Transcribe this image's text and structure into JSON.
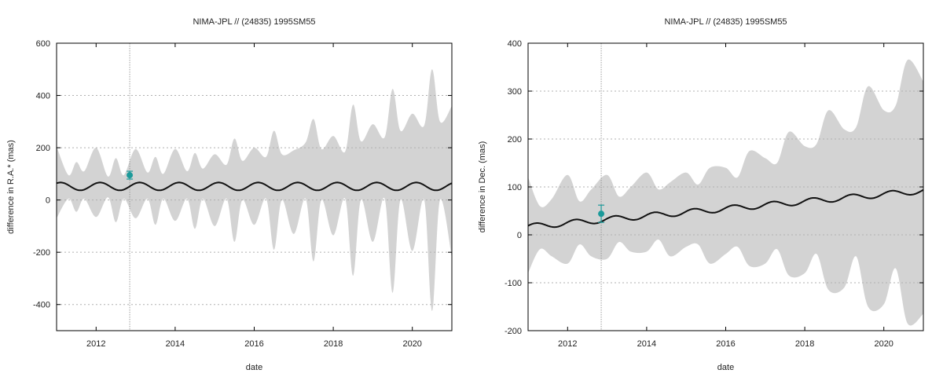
{
  "chart_data": [
    {
      "type": "area",
      "title": "NIMA-JPL // (24835) 1995SM55",
      "xlabel": "date",
      "ylabel": "difference in R.A.* (mas)",
      "xlim": [
        2011.0,
        2021.0
      ],
      "ylim": [
        -500,
        600
      ],
      "xticks": [
        2012,
        2014,
        2016,
        2018,
        2020
      ],
      "yticks": [
        -400,
        -200,
        0,
        200,
        400,
        600
      ],
      "grid": "horizontal dotted",
      "band_color": "#d3d3d3",
      "line_color": "#111111",
      "point_color": "#1b9a9a",
      "reference_date": 2012.85,
      "uncertainty_band": {
        "x": [
          2011.0,
          2011.3,
          2011.5,
          2011.7,
          2012.0,
          2012.3,
          2012.5,
          2012.7,
          2013.0,
          2013.3,
          2013.5,
          2013.7,
          2014.0,
          2014.3,
          2014.5,
          2014.7,
          2015.0,
          2015.3,
          2015.5,
          2015.7,
          2016.0,
          2016.3,
          2016.5,
          2016.7,
          2017.0,
          2017.3,
          2017.5,
          2017.7,
          2018.0,
          2018.3,
          2018.5,
          2018.7,
          2019.0,
          2019.3,
          2019.5,
          2019.7,
          2020.0,
          2020.3,
          2020.5,
          2020.7,
          2021.0
        ],
        "upper": [
          205,
          95,
          145,
          110,
          200,
          90,
          160,
          95,
          195,
          105,
          165,
          100,
          195,
          110,
          180,
          120,
          175,
          135,
          235,
          150,
          200,
          165,
          265,
          175,
          190,
          220,
          310,
          195,
          245,
          185,
          365,
          225,
          290,
          240,
          425,
          265,
          330,
          285,
          500,
          300,
          360
        ],
        "lower": [
          -70,
          5,
          -45,
          5,
          -65,
          10,
          -85,
          5,
          -70,
          5,
          -95,
          5,
          -80,
          5,
          -110,
          5,
          -100,
          5,
          -160,
          0,
          -95,
          5,
          -190,
          0,
          -130,
          5,
          -235,
          0,
          -135,
          5,
          -290,
          0,
          -160,
          5,
          -355,
          0,
          -195,
          0,
          -425,
          0,
          -220
        ]
      },
      "model_curve": {
        "mean": 52,
        "amplitude": 15,
        "trend_per_year": 0,
        "period_years": 1.0,
        "phase_peak": 2011.1
      },
      "points": [
        {
          "x": 2012.85,
          "y": 95,
          "err": 15
        }
      ]
    },
    {
      "type": "area",
      "title": "NIMA-JPL // (24835) 1995SM55",
      "xlabel": "date",
      "ylabel": "difference in Dec. (mas)",
      "xlim": [
        2011.0,
        2021.0
      ],
      "ylim": [
        -200,
        400
      ],
      "xticks": [
        2012,
        2014,
        2016,
        2018,
        2020
      ],
      "yticks": [
        -200,
        -100,
        0,
        100,
        200,
        300,
        400
      ],
      "grid": "horizontal dotted",
      "band_color": "#d3d3d3",
      "line_color": "#111111",
      "point_color": "#1b9a9a",
      "reference_date": 2012.85,
      "uncertainty_band": {
        "x": [
          2011.0,
          2011.3,
          2011.6,
          2012.0,
          2012.3,
          2012.6,
          2013.0,
          2013.3,
          2013.6,
          2014.0,
          2014.3,
          2014.6,
          2015.0,
          2015.3,
          2015.6,
          2016.0,
          2016.3,
          2016.6,
          2017.0,
          2017.3,
          2017.6,
          2018.0,
          2018.3,
          2018.6,
          2019.0,
          2019.3,
          2019.6,
          2020.0,
          2020.3,
          2020.6,
          2021.0
        ],
        "upper": [
          120,
          60,
          75,
          125,
          70,
          95,
          125,
          80,
          100,
          130,
          95,
          110,
          130,
          105,
          140,
          140,
          120,
          175,
          160,
          150,
          215,
          185,
          190,
          260,
          220,
          225,
          310,
          260,
          270,
          365,
          320
        ],
        "lower": [
          -80,
          -30,
          -45,
          -60,
          -20,
          -45,
          -50,
          -15,
          -35,
          -35,
          -10,
          -45,
          -25,
          -20,
          -60,
          -40,
          -25,
          -65,
          -60,
          -30,
          -85,
          -80,
          -40,
          -115,
          -110,
          -45,
          -150,
          -145,
          -70,
          -185,
          -165
        ]
      },
      "model_curve": {
        "mean": 17,
        "amplitude": 6,
        "trend_per_year": 7.5,
        "period_years": 1.0,
        "phase_peak": 2011.2
      },
      "points": [
        {
          "x": 2012.85,
          "y": 44,
          "err": 18
        }
      ]
    }
  ]
}
